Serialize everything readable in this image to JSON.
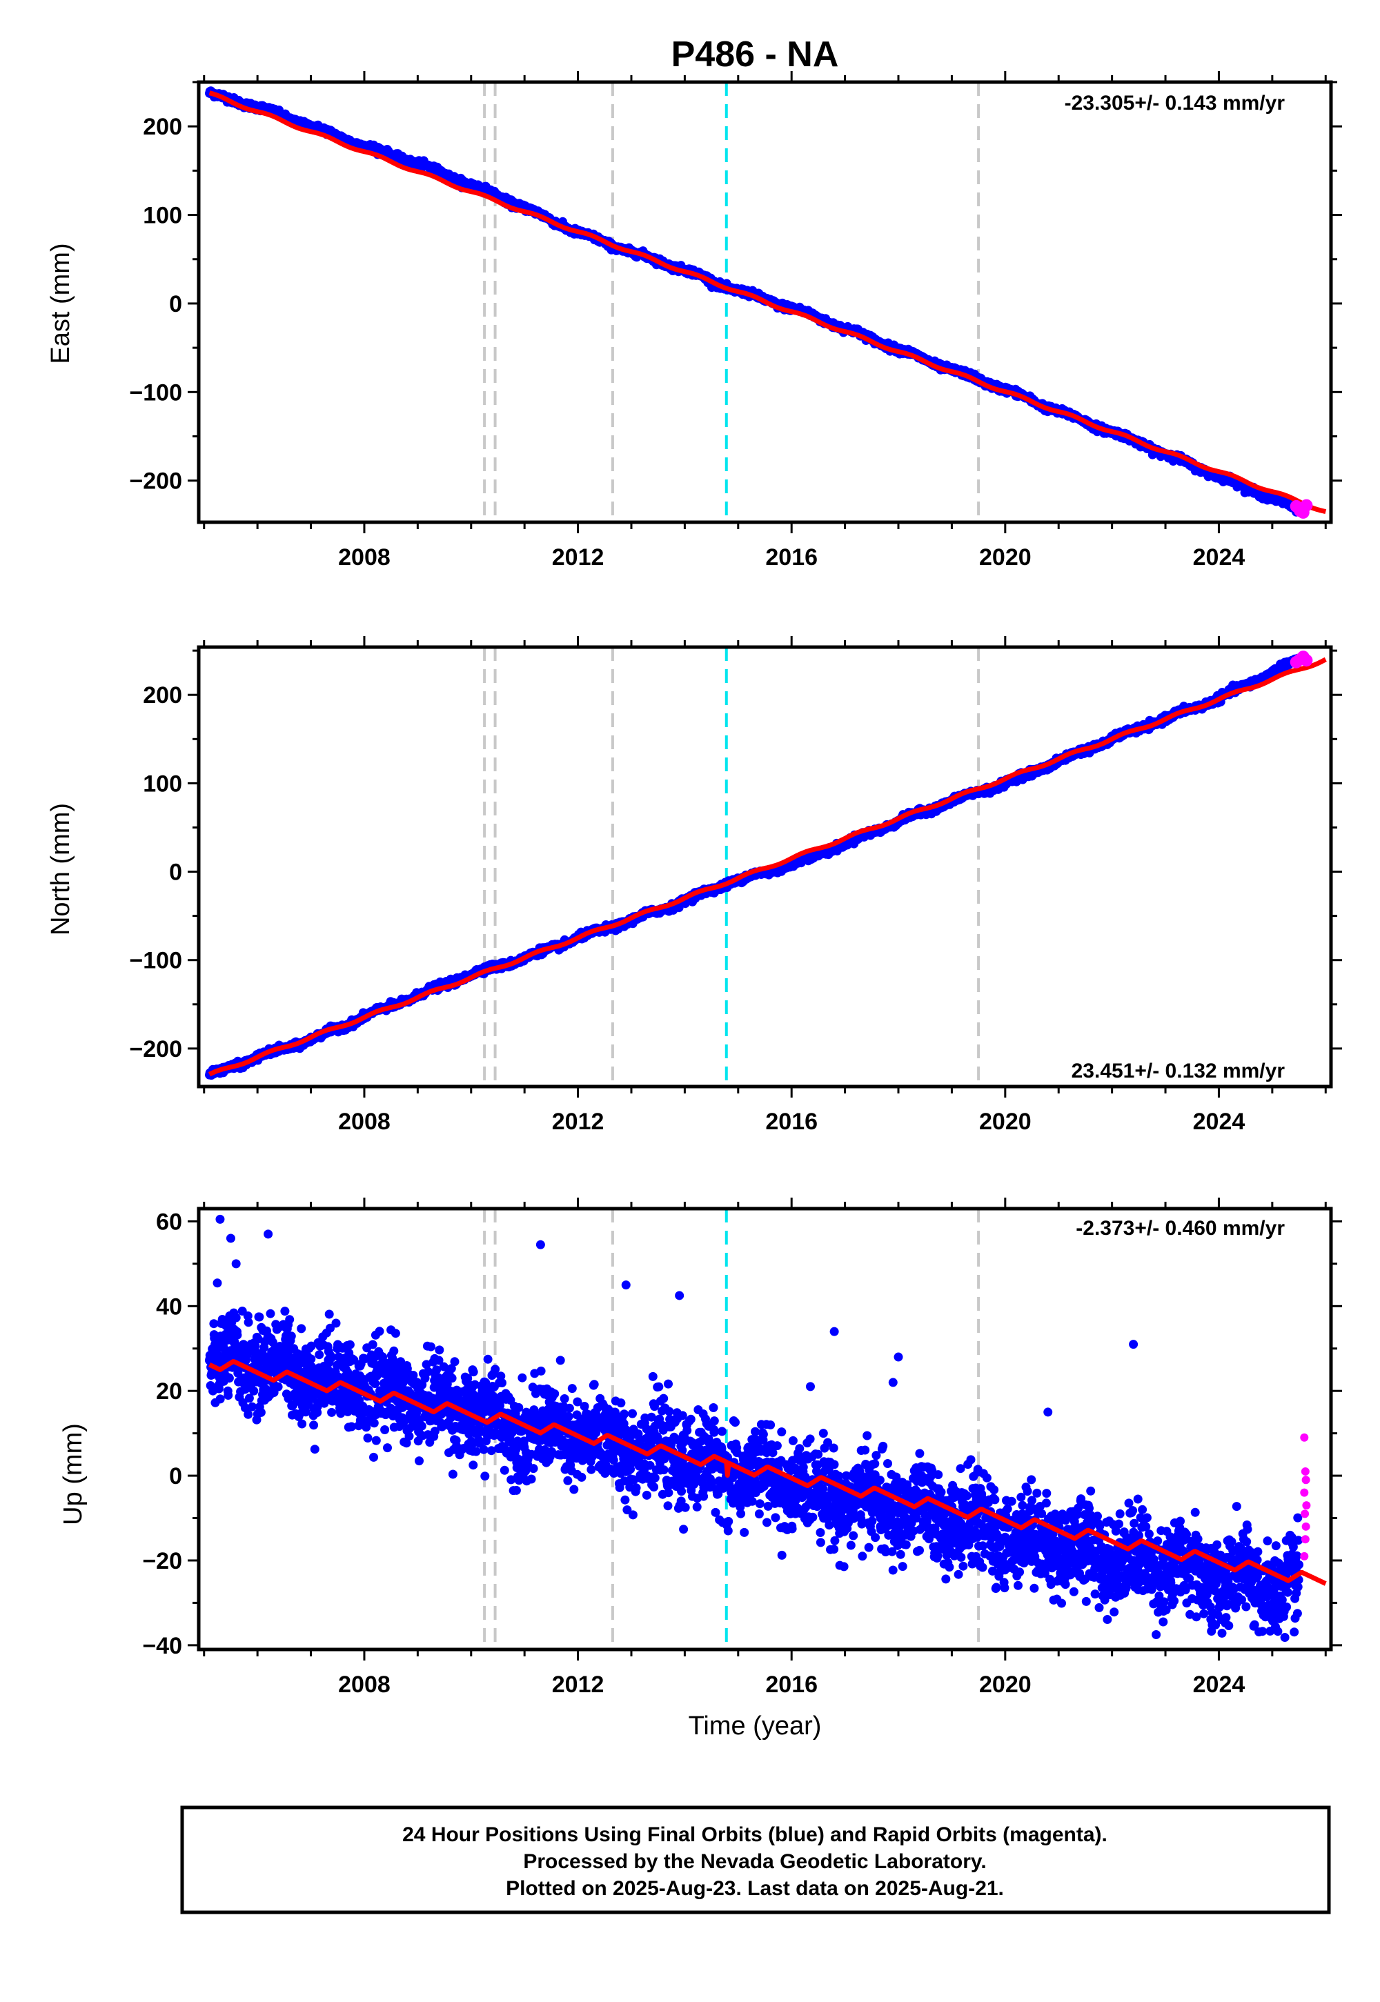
{
  "title": "P486 - NA",
  "colors": {
    "final_orbits": "#0000ff",
    "rapid_orbits": "#ff00ff",
    "model_fit": "#ff0000",
    "gray_event_line": "#c8c8c8",
    "cyan_event_line": "#00e5ee"
  },
  "footer": {
    "line1": "24 Hour Positions Using Final Orbits (blue) and Rapid Orbits (magenta).",
    "line2": "Processed by the Nevada Geodetic Laboratory.",
    "line3": "Plotted on 2025-Aug-23. Last data on 2025-Aug-21."
  },
  "chart_data": [
    {
      "type": "scatter",
      "panel": "east",
      "ylabel": "East (mm)",
      "xlabel": "",
      "xlim": [
        2004.9,
        2026.1
      ],
      "ylim": [
        -247,
        250
      ],
      "xticks": [
        2008,
        2012,
        2016,
        2020,
        2024
      ],
      "yticks": [
        -200,
        -100,
        0,
        100,
        200
      ],
      "rate_label": "-23.305+/- 0.143 mm/yr",
      "rate_position": "top-right",
      "series": [
        {
          "name": "Final Orbits (blue)",
          "x": [
            2005.1,
            2006.0,
            2007.0,
            2008.0,
            2009.0,
            2010.0,
            2011.0,
            2012.0,
            2013.0,
            2014.0,
            2014.8,
            2016.0,
            2017.0,
            2018.0,
            2019.0,
            2020.0,
            2021.0,
            2022.0,
            2023.0,
            2024.0,
            2025.5
          ],
          "y": [
            237,
            222,
            200,
            178,
            158,
            134,
            108,
            80,
            58,
            38,
            18,
            -5,
            -28,
            -52,
            -75,
            -97,
            -122,
            -145,
            -170,
            -195,
            -232
          ]
        },
        {
          "name": "Rapid Orbits (magenta)",
          "x": [
            2025.45,
            2025.52,
            2025.58,
            2025.64
          ],
          "y": [
            -229,
            -234,
            -236,
            -228
          ]
        },
        {
          "name": "Model fit",
          "x": [
            2005.1,
            2026.0
          ],
          "y": [
            237,
            -235
          ]
        }
      ],
      "event_lines": [
        {
          "x": 2010.25,
          "color": "gray"
        },
        {
          "x": 2010.45,
          "color": "gray"
        },
        {
          "x": 2012.65,
          "color": "gray"
        },
        {
          "x": 2014.78,
          "color": "cyan"
        },
        {
          "x": 2019.5,
          "color": "gray"
        }
      ]
    },
    {
      "type": "scatter",
      "panel": "north",
      "ylabel": "North (mm)",
      "xlabel": "",
      "xlim": [
        2004.9,
        2026.1
      ],
      "ylim": [
        -243,
        254
      ],
      "xticks": [
        2008,
        2012,
        2016,
        2020,
        2024
      ],
      "yticks": [
        -200,
        -100,
        0,
        100,
        200
      ],
      "rate_label": "23.451+/- 0.132 mm/yr",
      "rate_position": "bottom-right",
      "series": [
        {
          "name": "Final Orbits (blue)",
          "x": [
            2005.1,
            2006.0,
            2007.0,
            2008.0,
            2009.0,
            2010.0,
            2011.0,
            2012.0,
            2013.0,
            2014.0,
            2014.8,
            2016.0,
            2017.0,
            2018.0,
            2019.0,
            2020.0,
            2021.0,
            2022.0,
            2023.0,
            2024.0,
            2025.5
          ],
          "y": [
            -230,
            -210,
            -190,
            -164,
            -140,
            -116,
            -98,
            -75,
            -55,
            -33,
            -13,
            8,
            32,
            57,
            80,
            100,
            125,
            150,
            173,
            196,
            240
          ]
        },
        {
          "name": "Rapid Orbits (magenta)",
          "x": [
            2025.45,
            2025.52,
            2025.58,
            2025.64
          ],
          "y": [
            237,
            240,
            243,
            239
          ]
        },
        {
          "name": "Model fit",
          "x": [
            2005.1,
            2026.0
          ],
          "y": [
            -230,
            240
          ]
        }
      ],
      "event_lines": [
        {
          "x": 2010.25,
          "color": "gray"
        },
        {
          "x": 2010.45,
          "color": "gray"
        },
        {
          "x": 2012.65,
          "color": "gray"
        },
        {
          "x": 2014.78,
          "color": "cyan"
        },
        {
          "x": 2019.5,
          "color": "gray"
        }
      ]
    },
    {
      "type": "scatter",
      "panel": "up",
      "ylabel": "Up (mm)",
      "xlabel": "Time (year)",
      "xlim": [
        2004.9,
        2026.1
      ],
      "ylim": [
        -41,
        63
      ],
      "xticks": [
        2008,
        2012,
        2016,
        2020,
        2024
      ],
      "yticks": [
        -40,
        -20,
        0,
        20,
        40,
        60
      ],
      "rate_label": "-2.373+/- 0.460 mm/yr",
      "rate_position": "top-right",
      "series": [
        {
          "name": "Final Orbits (blue)",
          "x": [
            2005.1,
            2006.0,
            2007.0,
            2008.0,
            2009.0,
            2010.0,
            2011.0,
            2012.0,
            2013.0,
            2014.0,
            2014.8,
            2016.0,
            2017.0,
            2018.0,
            2019.0,
            2020.0,
            2021.0,
            2022.0,
            2023.0,
            2024.0,
            2025.5
          ],
          "y": [
            26,
            27,
            24,
            21,
            18,
            15,
            11,
            9,
            7,
            4,
            1,
            -2,
            -5,
            -8,
            -10,
            -14,
            -16,
            -19,
            -21,
            -24,
            -27
          ],
          "outliers": [
            {
              "x": 2005.3,
              "y": 60.5
            },
            {
              "x": 2005.5,
              "y": 56
            },
            {
              "x": 2006.2,
              "y": 57
            },
            {
              "x": 2005.6,
              "y": 50
            },
            {
              "x": 2011.3,
              "y": 54.5
            },
            {
              "x": 2012.9,
              "y": 45
            },
            {
              "x": 2013.9,
              "y": 42.5
            },
            {
              "x": 2016.8,
              "y": 34
            },
            {
              "x": 2018.0,
              "y": 28
            },
            {
              "x": 2022.4,
              "y": 31
            },
            {
              "x": 2017.9,
              "y": 22
            },
            {
              "x": 2020.8,
              "y": 15
            }
          ]
        },
        {
          "name": "Rapid Orbits (magenta)",
          "x": [
            2025.6,
            2025.62,
            2025.63,
            2025.6,
            2025.64,
            2025.61,
            2025.63,
            2025.62,
            2025.6
          ],
          "y": [
            9,
            1,
            -1,
            -4,
            -7,
            -9,
            -12,
            -15,
            -19
          ]
        },
        {
          "name": "Model fit",
          "x": [
            2005.1,
            2026.0
          ],
          "y": [
            25.5,
            -26.5
          ]
        }
      ],
      "event_lines": [
        {
          "x": 2010.25,
          "color": "gray"
        },
        {
          "x": 2010.45,
          "color": "gray"
        },
        {
          "x": 2012.65,
          "color": "gray"
        },
        {
          "x": 2014.78,
          "color": "cyan"
        },
        {
          "x": 2019.5,
          "color": "gray"
        }
      ]
    }
  ]
}
